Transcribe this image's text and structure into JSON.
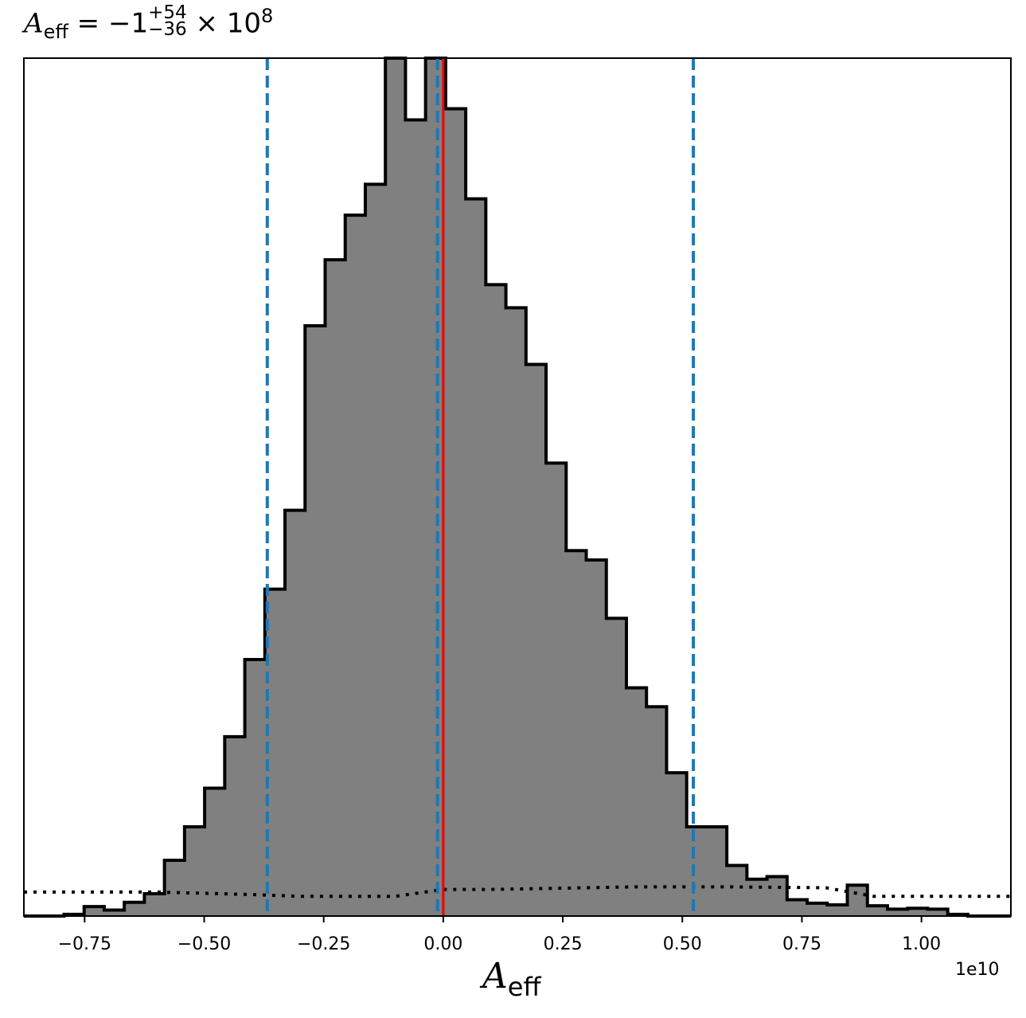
{
  "title": {
    "symbol": "A",
    "symbol_sub": "eff",
    "rest": " = −1",
    "sup": "+54",
    "sub": "−36",
    "tail": " × 10",
    "exp": "8"
  },
  "chart_data": {
    "type": "histogram",
    "xlabel": "A_eff",
    "xlabel_symbol": "A",
    "xlabel_sub": "eff",
    "x_offset_text": "1e10",
    "x_scale": 10000000000.0,
    "xlim": [
      -0.877,
      1.187
    ],
    "ylim": [
      0,
      1.0
    ],
    "x_ticks": [
      -0.75,
      -0.5,
      -0.25,
      0.0,
      0.25,
      0.5,
      0.75,
      1.0
    ],
    "x_tick_labels": [
      "−0.75",
      "−0.50",
      "−0.25",
      "0.00",
      "0.25",
      "0.50",
      "0.75",
      "1.00"
    ],
    "y_ticks_shown": false,
    "grid": false,
    "histogram": {
      "fill_color": "#808080",
      "edge_color": "#000000",
      "bin_edges": [
        -0.877,
        -0.835,
        -0.793,
        -0.751,
        -0.709,
        -0.667,
        -0.625,
        -0.583,
        -0.541,
        -0.499,
        -0.457,
        -0.415,
        -0.373,
        -0.331,
        -0.289,
        -0.247,
        -0.205,
        -0.163,
        -0.121,
        -0.079,
        -0.037,
        0.005,
        0.047,
        0.089,
        0.131,
        0.173,
        0.215,
        0.257,
        0.299,
        0.341,
        0.383,
        0.425,
        0.467,
        0.509,
        0.551,
        0.593,
        0.635,
        0.677,
        0.719,
        0.761,
        0.803,
        0.845,
        0.887,
        0.929,
        0.971,
        1.013,
        1.055,
        1.097,
        1.139,
        1.187
      ],
      "heights": [
        0.0,
        0.0,
        0.002,
        0.011,
        0.007,
        0.016,
        0.026,
        0.065,
        0.104,
        0.149,
        0.209,
        0.299,
        0.381,
        0.473,
        0.688,
        0.765,
        0.817,
        0.853,
        1.0,
        0.928,
        1.0,
        0.941,
        0.836,
        0.736,
        0.709,
        0.643,
        0.528,
        0.426,
        0.415,
        0.347,
        0.266,
        0.244,
        0.167,
        0.104,
        0.104,
        0.059,
        0.043,
        0.046,
        0.019,
        0.015,
        0.013,
        0.036,
        0.012,
        0.008,
        0.009,
        0.008,
        0.002,
        0.0,
        0.0
      ]
    },
    "prior_line": {
      "style": "dotted",
      "color": "#000000",
      "x": [
        -0.877,
        -0.6,
        -0.4,
        -0.3,
        -0.1,
        0.0,
        0.1,
        0.4,
        0.6,
        0.8,
        0.9,
        1.0,
        1.187
      ],
      "y": [
        0.028,
        0.028,
        0.025,
        0.023,
        0.023,
        0.031,
        0.031,
        0.034,
        0.034,
        0.033,
        0.023,
        0.023,
        0.023
      ]
    },
    "vertical_lines": [
      {
        "x": -0.368,
        "color": "#1f77b4",
        "style": "dashed"
      },
      {
        "x": -0.012,
        "color": "#1f77b4",
        "style": "dashed"
      },
      {
        "x": 0.523,
        "color": "#1f77b4",
        "style": "dashed"
      },
      {
        "x": 0.0,
        "color": "#ee0000",
        "style": "solid"
      }
    ]
  }
}
